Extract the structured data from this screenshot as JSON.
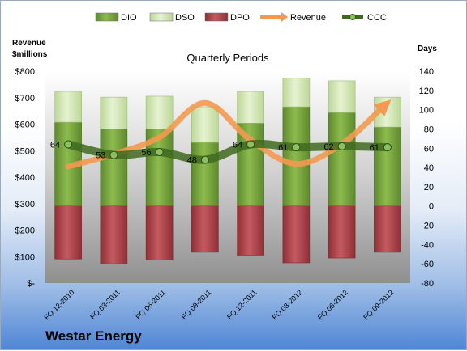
{
  "company": "Westar Energy",
  "chart_data": {
    "type": "bar",
    "title": "Quarterly Periods",
    "left_axis_title": [
      "Revenue",
      "$millions"
    ],
    "right_axis_title": "Days",
    "categories": [
      "FQ 12-2010",
      "FQ 03-2011",
      "FQ 06-2011",
      "FQ 09-2011",
      "FQ 12-2011",
      "FQ 03-2012",
      "FQ 06-2012",
      "FQ 09-2012"
    ],
    "left_ylim": [
      0,
      800
    ],
    "left_ticks": [
      "$-",
      "$100",
      "$200",
      "$300",
      "$400",
      "$500",
      "$600",
      "$700",
      "$800"
    ],
    "right_ylim": [
      -80,
      140
    ],
    "right_ticks": [
      "-80",
      "-60",
      "-40",
      "-20",
      "0",
      "20",
      "40",
      "60",
      "80",
      "100",
      "120",
      "140"
    ],
    "legend": [
      "DIO",
      "DSO",
      "DPO",
      "Revenue",
      "CCC"
    ],
    "series": [
      {
        "name": "DIO",
        "axis": "days",
        "color": "#77a23f",
        "values": [
          87,
          80,
          80,
          66,
          86,
          103,
          97,
          82
        ]
      },
      {
        "name": "DSO",
        "axis": "days",
        "color": "#d3e7b4",
        "values": [
          32,
          33,
          34,
          37,
          33,
          30,
          33,
          31
        ]
      },
      {
        "name": "DPO",
        "axis": "days",
        "color": "#b04a4f",
        "values": [
          -55,
          -60,
          -56,
          -48,
          -51,
          -59,
          -54,
          -48
        ]
      },
      {
        "name": "Revenue",
        "axis": "money",
        "color": "#f4994f",
        "values": [
          440,
          487,
          550,
          680,
          540,
          450,
          525,
          680
        ]
      },
      {
        "name": "CCC",
        "axis": "days",
        "color": "#3f6a1e",
        "values": [
          64,
          53,
          56,
          48,
          64,
          61,
          62,
          61
        ]
      }
    ]
  }
}
